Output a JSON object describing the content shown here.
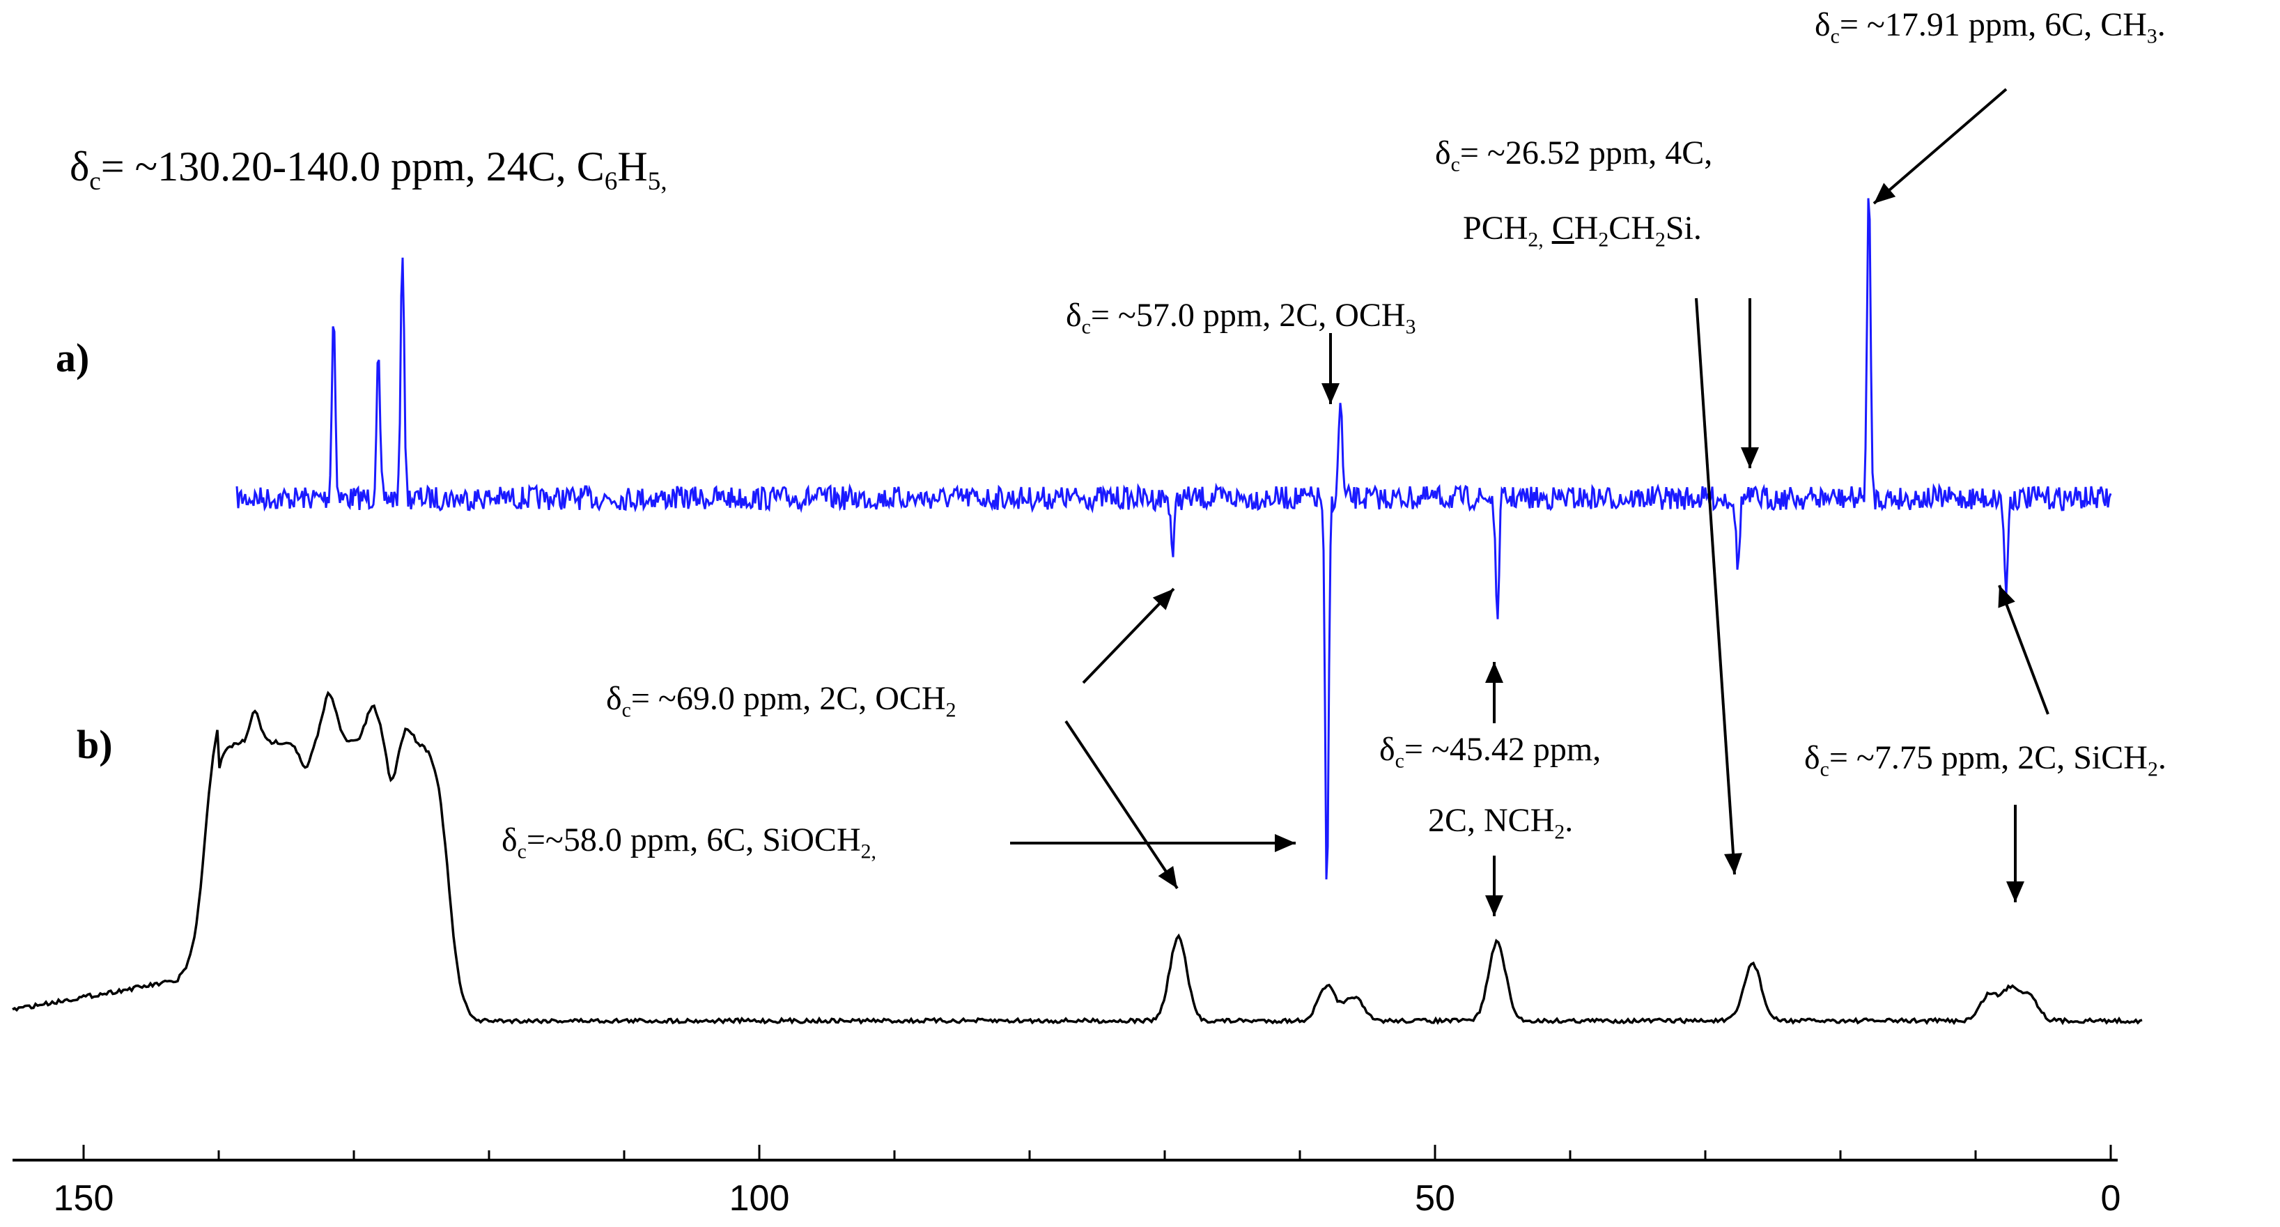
{
  "chart_data": [
    {
      "type": "line",
      "panel_label": "a)",
      "color": "#1a1aff",
      "xlim": [
        155,
        -5
      ],
      "x_reversed": true,
      "peaks": [
        {
          "x": 131.5,
          "height": 0.66
        },
        {
          "x": 128.2,
          "height": 0.5
        },
        {
          "x": 126.4,
          "height": 0.9
        },
        {
          "x": 69.4,
          "height": -0.2
        },
        {
          "x": 58.0,
          "height": -1.45
        },
        {
          "x": 57.0,
          "height": 0.36
        },
        {
          "x": 45.4,
          "height": -0.44
        },
        {
          "x": 27.6,
          "height": -0.26
        },
        {
          "x": 17.9,
          "height": 1.1
        },
        {
          "x": 7.75,
          "height": -0.34
        }
      ]
    },
    {
      "type": "line",
      "panel_label": "b)",
      "color": "#000000",
      "xlim": [
        155,
        -5
      ],
      "x_reversed": true,
      "x_ticks": [
        150,
        100,
        50,
        0
      ],
      "peaks": [
        {
          "x": 69.0,
          "height": 0.48
        },
        {
          "x": 58.0,
          "height": 0.2
        },
        {
          "x": 56.0,
          "height": 0.14
        },
        {
          "x": 45.4,
          "height": 0.45
        },
        {
          "x": 26.5,
          "height": 0.33
        },
        {
          "x": 9.0,
          "height": 0.15
        },
        {
          "x": 7.4,
          "height": 0.18
        },
        {
          "x": 6.0,
          "height": 0.14
        }
      ],
      "broad_band": {
        "from": 140,
        "to": 124,
        "height": 1.6
      }
    }
  ],
  "annotations": {
    "c6h5": {
      "pre": "= ~130.20-140.0 ppm, 24C, C",
      "sub1": "6",
      "mid": "H",
      "sub2": "5,"
    },
    "ch3": {
      "pre": "= ~17.91 ppm, 6C, CH",
      "sub1": "3",
      "post": "."
    },
    "pch2_line1": {
      "pre": "= ~26.52 ppm, 4C,"
    },
    "pch2_line2": {
      "a": "PCH",
      "sub1": "2,",
      "b": "C",
      "c": "H",
      "sub2": "2",
      "d": "CH",
      "sub3": "2",
      "e": "Si."
    },
    "och3": {
      "pre": "= ~57.0 ppm, 2C, OCH",
      "sub1": "3"
    },
    "och2": {
      "pre": "= ~69.0 ppm, 2C, OCH",
      "sub1": "2"
    },
    "nch2_line1": {
      "pre": "= ~45.42 ppm,"
    },
    "nch2_line2": {
      "a": "2C, NCH",
      "sub1": "2",
      "b": "."
    },
    "sich2": {
      "pre": "= ~7.75 ppm, 2C, SiCH",
      "sub1": "2",
      "post": "."
    },
    "siocch2": {
      "pre": "=~58.0 ppm, 6C, SiOCH",
      "sub1": "2,"
    },
    "delta": "δ",
    "delta_sub": "c"
  }
}
